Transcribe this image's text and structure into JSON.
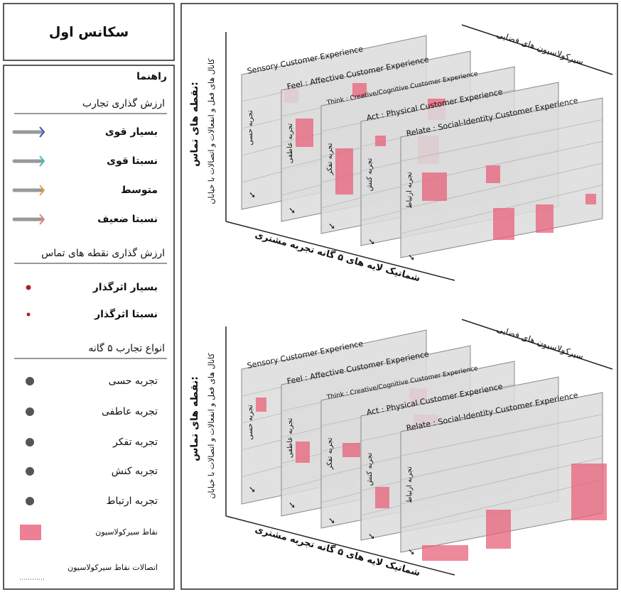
{
  "sidebar": {
    "title": "سکانس اول",
    "legend_title": "راهنما",
    "sections": [
      {
        "heading": "ارزش گذاری تجارب",
        "items": [
          "بسیار قوی",
          "نسبتا قوی",
          "متوسط",
          "نسبتا ضعیف"
        ]
      },
      {
        "heading": "ارزش گذاری نقطه های تماس",
        "items": [
          "بسیار اثرگذار",
          "نسبتا اثرگذار"
        ]
      },
      {
        "heading": "انواع تجارب ۵ گانه",
        "items": [
          "تجربه حسی",
          "تجربه عاطفی",
          "تجربه تفکر",
          "تجربه کنش",
          "تجربه ارتباط",
          "نقاط سیرکولاسیون",
          "اتصالات نقاط سیرکولاسیون"
        ]
      }
    ]
  },
  "diagrams": [
    {
      "axis_x": "شماتیک لایه های ۵ گانه تجربه مشتری",
      "axis_y_title": "نقطه های تماس:",
      "axis_y_sub": "کانال های فعل و انفعالات و اتصالات با خیابان",
      "axis_z": "سیرکولاسیون های فضایی",
      "layers": [
        {
          "title": "Sensory Customer Experience",
          "label": "تجربه حسی"
        },
        {
          "title": "Feel : Affective Customer Experience",
          "label": "تجربه عاطفی"
        },
        {
          "title": "Think : Creative/Cognitive Customer Experience",
          "label": "تجربه تفکر"
        },
        {
          "title": "Act : Physical Customer Experience",
          "label": "تجربه کنش"
        },
        {
          "title": "Relate : Social-Identity Customer Experience",
          "label": "تجربه ارتباط"
        }
      ]
    },
    {
      "axis_x": "شماتیک لایه های ۵ گانه تجربه مشتری",
      "axis_y_title": "نقطه های تماس:",
      "axis_y_sub": "کانال های فعل و انفعالات و اتصالات با خیابان",
      "axis_z": "سیرکولاسیون های فضایی",
      "layers": [
        {
          "title": "Sensory Customer Experience",
          "label": "تجربه حسی"
        },
        {
          "title": "Feel : Affective Customer Experience",
          "label": "تجربه عاطفی"
        },
        {
          "title": "Think : Creative/Cognitive Customer Experience",
          "label": "تجربه تفکر"
        },
        {
          "title": "Act : Physical Customer Experience",
          "label": "تجربه کنش"
        },
        {
          "title": "Relate : Social-Identity Customer Experience",
          "label": "تجربه ارتباط"
        }
      ]
    }
  ]
}
